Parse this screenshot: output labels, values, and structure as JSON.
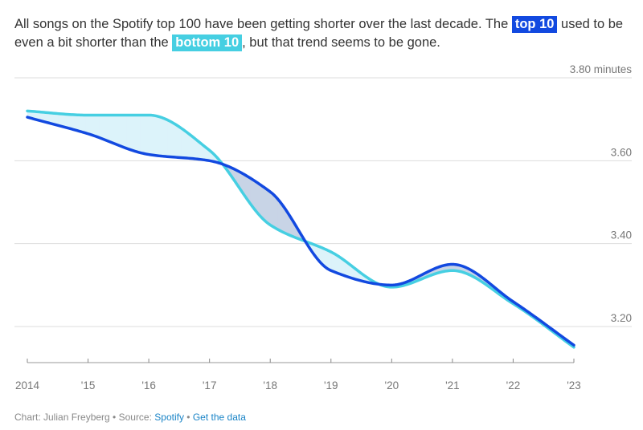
{
  "title": {
    "part1": "All songs on the Spotify top 100 have been getting shorter over the last decade. The ",
    "badge_top": "top 10",
    "part2": " used to be even a bit shorter than the ",
    "badge_bottom": "bottom 10",
    "part3": ", but that trend seems to be gone."
  },
  "footer": {
    "chart_label": "Chart: Julian Freyberg",
    "sep1": " • Source: ",
    "source_link": "Spotify",
    "sep2": " • ",
    "data_link": "Get the data"
  },
  "colors": {
    "top10": "#1249e0",
    "bottom10": "#46cfe2",
    "fill_top_longer": "#c8d4e6",
    "fill_bottom_longer": "#dcf3fa",
    "grid": "#dddddd",
    "axis_text": "#777777"
  },
  "chart_data": {
    "type": "line",
    "x": [
      2014,
      2015,
      2016,
      2017,
      2018,
      2019,
      2020,
      2021,
      2022,
      2023
    ],
    "x_tick_labels": [
      "2014",
      "'15",
      "'16",
      "'17",
      "'18",
      "'19",
      "'20",
      "'21",
      "'22",
      "'23"
    ],
    "y_tick_values": [
      3.2,
      3.4,
      3.6,
      3.8
    ],
    "y_tick_labels": [
      "3.20",
      "3.40",
      "3.60",
      "3.80 minutes"
    ],
    "ylim": [
      3.1,
      3.8
    ],
    "grid": true,
    "series": [
      {
        "name": "top 10",
        "color": "#1249e0",
        "values": [
          3.705,
          3.665,
          3.615,
          3.6,
          3.525,
          3.335,
          3.3,
          3.35,
          3.26,
          3.155
        ]
      },
      {
        "name": "bottom 10",
        "color": "#46cfe2",
        "values": [
          3.72,
          3.71,
          3.71,
          3.625,
          3.445,
          3.38,
          3.295,
          3.335,
          3.255,
          3.15
        ]
      }
    ]
  }
}
